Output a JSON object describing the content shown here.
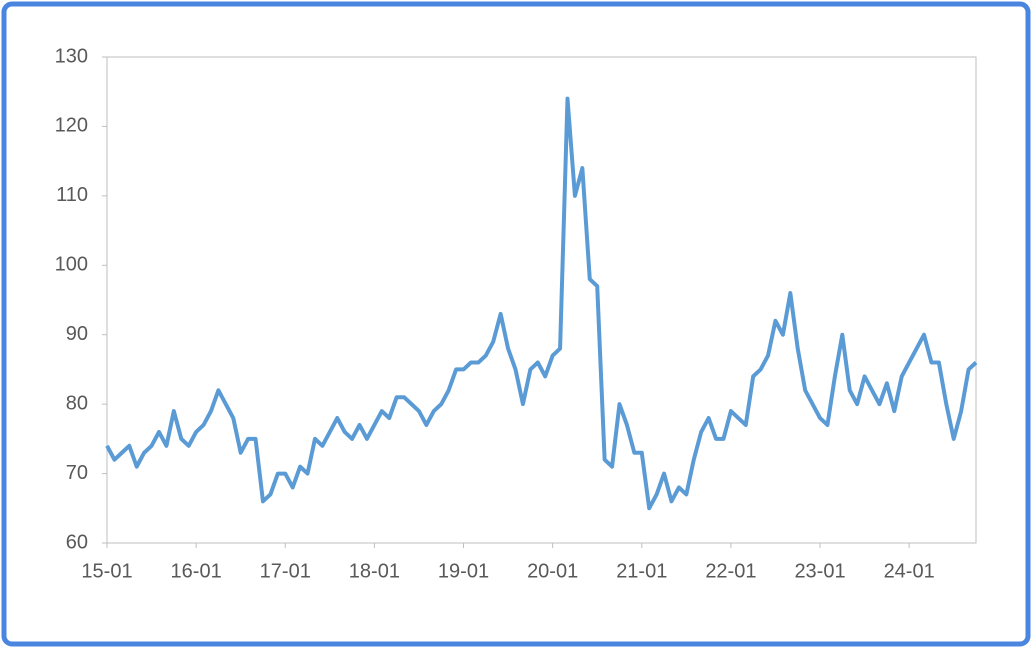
{
  "chart_data": {
    "type": "line",
    "x": [
      "15-01",
      "15-02",
      "15-03",
      "15-04",
      "15-05",
      "15-06",
      "15-07",
      "15-08",
      "15-09",
      "15-10",
      "15-11",
      "15-12",
      "16-01",
      "16-02",
      "16-03",
      "16-04",
      "16-05",
      "16-06",
      "16-07",
      "16-08",
      "16-09",
      "16-10",
      "16-11",
      "16-12",
      "17-01",
      "17-02",
      "17-03",
      "17-04",
      "17-05",
      "17-06",
      "17-07",
      "17-08",
      "17-09",
      "17-10",
      "17-11",
      "17-12",
      "18-01",
      "18-02",
      "18-03",
      "18-04",
      "18-05",
      "18-06",
      "18-07",
      "18-08",
      "18-09",
      "18-10",
      "18-11",
      "18-12",
      "19-01",
      "19-02",
      "19-03",
      "19-04",
      "19-05",
      "19-06",
      "19-07",
      "19-08",
      "19-09",
      "19-10",
      "19-11",
      "19-12",
      "20-01",
      "20-02",
      "20-03",
      "20-04",
      "20-05",
      "20-06",
      "20-07",
      "20-08",
      "20-09",
      "20-10",
      "20-11",
      "20-12",
      "21-01",
      "21-02",
      "21-03",
      "21-04",
      "21-05",
      "21-06",
      "21-07",
      "21-08",
      "21-09",
      "21-10",
      "21-11",
      "21-12",
      "22-01",
      "22-02",
      "22-03",
      "22-04",
      "22-05",
      "22-06",
      "22-07",
      "22-08",
      "22-09",
      "22-10",
      "22-11",
      "22-12",
      "23-01",
      "23-02",
      "23-03",
      "23-04",
      "23-05",
      "23-06",
      "23-07",
      "23-08",
      "23-09",
      "23-10",
      "23-11",
      "23-12",
      "24-01",
      "24-02",
      "24-03",
      "24-04",
      "24-05",
      "24-06",
      "24-07",
      "24-08",
      "24-09",
      "24-10"
    ],
    "series": [
      {
        "color": "#5b9bd5",
        "values": [
          74,
          72,
          73,
          74,
          71,
          73,
          74,
          76,
          74,
          79,
          75,
          74,
          76,
          77,
          79,
          82,
          80,
          78,
          73,
          75,
          75,
          66,
          67,
          70,
          70,
          68,
          71,
          70,
          75,
          74,
          76,
          78,
          76,
          75,
          77,
          75,
          77,
          79,
          78,
          81,
          81,
          80,
          79,
          77,
          79,
          80,
          82,
          85,
          85,
          86,
          86,
          87,
          89,
          93,
          88,
          85,
          80,
          85,
          86,
          84,
          87,
          88,
          124,
          110,
          114,
          98,
          97,
          72,
          71,
          80,
          77,
          73,
          73,
          65,
          67,
          70,
          66,
          68,
          67,
          72,
          76,
          78,
          75,
          75,
          79,
          78,
          77,
          84,
          85,
          87,
          92,
          90,
          96,
          88,
          82,
          80,
          78,
          77,
          84,
          90,
          82,
          80,
          84,
          82,
          80,
          83,
          79,
          84,
          86,
          88,
          90,
          86,
          86,
          80,
          75,
          79,
          85,
          86
        ]
      }
    ],
    "xticks": [
      "15-01",
      "16-01",
      "17-01",
      "18-01",
      "19-01",
      "20-01",
      "21-01",
      "22-01",
      "23-01",
      "24-01"
    ],
    "ylim": [
      60,
      130
    ],
    "yticks": [
      60,
      70,
      80,
      90,
      100,
      110,
      120,
      130
    ]
  }
}
